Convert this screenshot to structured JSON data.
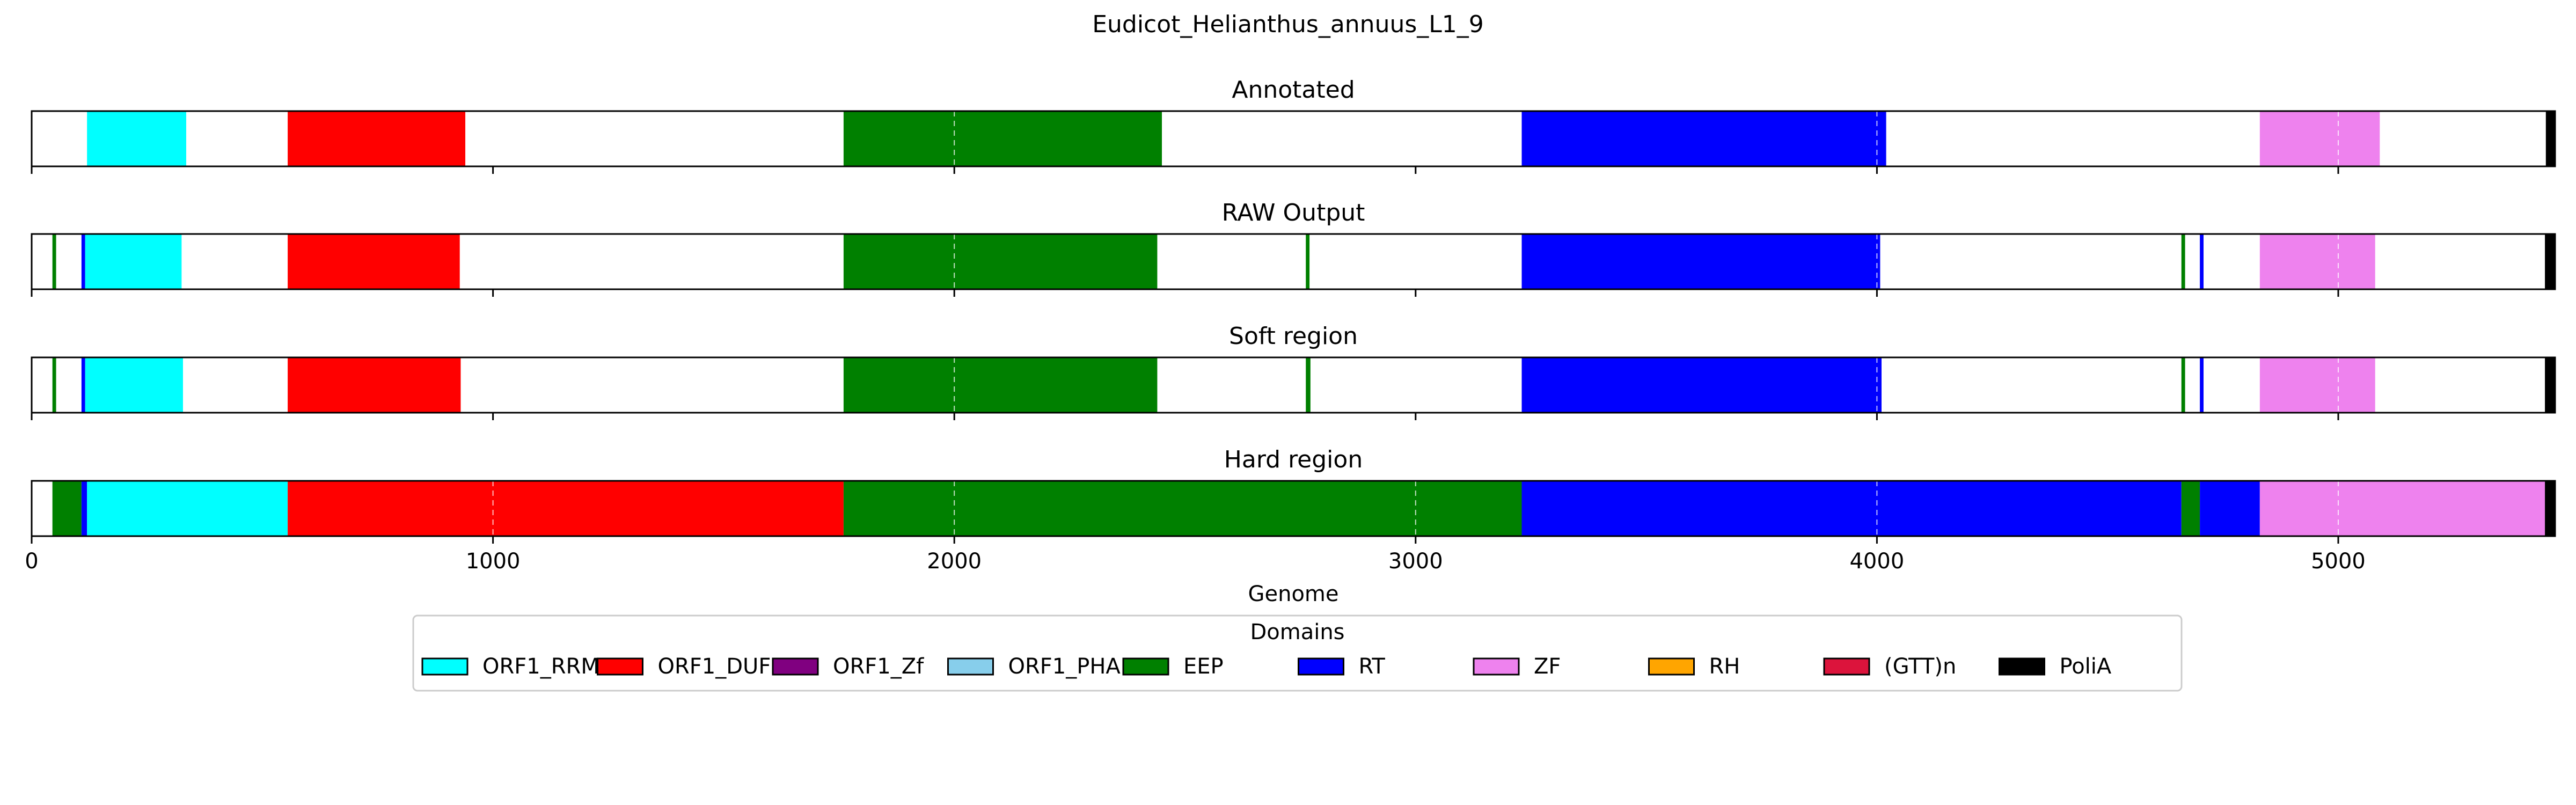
{
  "chart_data": {
    "type": "bar",
    "title": "Eudicot_Helianthus_annuus_L1_9",
    "xlabel": "Genome",
    "xlim": [
      0,
      5470
    ],
    "xticks": [
      0,
      1000,
      2000,
      3000,
      4000,
      5000
    ],
    "xtick_labels": [
      "0",
      "1000",
      "2000",
      "3000",
      "4000",
      "5000"
    ],
    "grid": "x-axis dashed, visible only behind filled bars",
    "panels": [
      {
        "title": "Annotated",
        "segments": [
          {
            "domain": "ORF1_RRM",
            "start": 120,
            "end": 335
          },
          {
            "domain": "ORF1_DUF",
            "start": 555,
            "end": 940
          },
          {
            "domain": "EEP",
            "start": 1760,
            "end": 2450
          },
          {
            "domain": "RT",
            "start": 3230,
            "end": 4020
          },
          {
            "domain": "ZF",
            "start": 4830,
            "end": 5090
          },
          {
            "domain": "PoliA",
            "start": 5450,
            "end": 5470
          }
        ]
      },
      {
        "title": "RAW Output",
        "segments": [
          {
            "domain": "EEP",
            "start": 45,
            "end": 53
          },
          {
            "domain": "RT",
            "start": 108,
            "end": 116
          },
          {
            "domain": "ORF1_RRM",
            "start": 116,
            "end": 325
          },
          {
            "domain": "ORF1_DUF",
            "start": 555,
            "end": 928
          },
          {
            "domain": "EEP",
            "start": 1760,
            "end": 2440
          },
          {
            "domain": "EEP",
            "start": 2762,
            "end": 2770
          },
          {
            "domain": "RT",
            "start": 3230,
            "end": 4007
          },
          {
            "domain": "EEP",
            "start": 4660,
            "end": 4668
          },
          {
            "domain": "RT",
            "start": 4700,
            "end": 4708
          },
          {
            "domain": "ZF",
            "start": 4830,
            "end": 5080
          },
          {
            "domain": "PoliA",
            "start": 5448,
            "end": 5470
          }
        ]
      },
      {
        "title": "Soft region",
        "segments": [
          {
            "domain": "EEP",
            "start": 45,
            "end": 53
          },
          {
            "domain": "RT",
            "start": 108,
            "end": 116
          },
          {
            "domain": "ORF1_RRM",
            "start": 116,
            "end": 328
          },
          {
            "domain": "ORF1_DUF",
            "start": 555,
            "end": 930
          },
          {
            "domain": "EEP",
            "start": 1760,
            "end": 2440
          },
          {
            "domain": "EEP",
            "start": 2762,
            "end": 2772
          },
          {
            "domain": "RT",
            "start": 3230,
            "end": 4010
          },
          {
            "domain": "EEP",
            "start": 4660,
            "end": 4668
          },
          {
            "domain": "RT",
            "start": 4700,
            "end": 4708
          },
          {
            "domain": "ZF",
            "start": 4830,
            "end": 5080
          },
          {
            "domain": "PoliA",
            "start": 5448,
            "end": 5470
          }
        ]
      },
      {
        "title": "Hard region",
        "segments": [
          {
            "domain": "EEP",
            "start": 45,
            "end": 108
          },
          {
            "domain": "RT",
            "start": 108,
            "end": 120
          },
          {
            "domain": "ORF1_RRM",
            "start": 120,
            "end": 555
          },
          {
            "domain": "ORF1_DUF",
            "start": 555,
            "end": 1760
          },
          {
            "domain": "EEP",
            "start": 1760,
            "end": 3230
          },
          {
            "domain": "RT",
            "start": 3230,
            "end": 4660
          },
          {
            "domain": "EEP",
            "start": 4660,
            "end": 4700
          },
          {
            "domain": "RT",
            "start": 4700,
            "end": 4830
          },
          {
            "domain": "ZF",
            "start": 4830,
            "end": 5448
          },
          {
            "domain": "PoliA",
            "start": 5448,
            "end": 5470
          }
        ]
      }
    ],
    "legend": {
      "title": "Domains",
      "placement": "bottom-center",
      "entries": [
        {
          "name": "ORF1_RRM",
          "color": "#00ffff"
        },
        {
          "name": "ORF1_DUF",
          "color": "#ff0000"
        },
        {
          "name": "ORF1_Zf",
          "color": "#800080"
        },
        {
          "name": "ORF1_PHA",
          "color": "#87ceeb"
        },
        {
          "name": "EEP",
          "color": "#008000"
        },
        {
          "name": "RT",
          "color": "#0000ff"
        },
        {
          "name": "ZF",
          "color": "#ee82ee"
        },
        {
          "name": "RH",
          "color": "#ffa500"
        },
        {
          "name": "(GTT)n",
          "color": "#dc143c"
        },
        {
          "name": "PoliA",
          "color": "#000000"
        }
      ]
    }
  }
}
